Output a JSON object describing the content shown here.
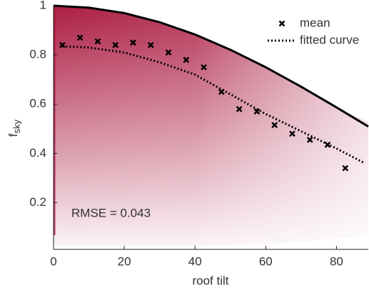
{
  "chart_data": {
    "type": "scatter",
    "xlabel": "roof tilt",
    "ylabel": "f",
    "ylabel_sub": "sky",
    "annotation": "RMSE = 0.043",
    "xlim": [
      0,
      89
    ],
    "ylim": [
      0.01,
      1
    ],
    "xticks": [
      0,
      20,
      40,
      60,
      80
    ],
    "yticks": [
      0.2,
      0.4,
      0.6,
      0.8,
      1
    ],
    "legend_position": "upper right",
    "series": [
      {
        "name": "mean",
        "kind": "marker",
        "color": "#000000",
        "x": [
          2.5,
          7.5,
          12.5,
          17.5,
          22.5,
          27.5,
          32.5,
          37.5,
          42.5,
          47.5,
          52.5,
          57.5,
          62.5,
          67.5,
          72.5,
          77.5,
          82.5
        ],
        "values": [
          0.84,
          0.87,
          0.855,
          0.84,
          0.85,
          0.84,
          0.81,
          0.78,
          0.75,
          0.65,
          0.58,
          0.57,
          0.515,
          0.48,
          0.455,
          0.435,
          0.34
        ]
      },
      {
        "name": "fitted curve",
        "kind": "dotted",
        "color": "#000000",
        "x": [
          2.5,
          10,
          20,
          30,
          40,
          50,
          60,
          70,
          80,
          88
        ],
        "values": [
          0.835,
          0.83,
          0.81,
          0.77,
          0.72,
          0.64,
          0.56,
          0.49,
          0.42,
          0.36
        ]
      },
      {
        "kind": "solid",
        "color": "#000000",
        "x": [
          0,
          10,
          20,
          30,
          40,
          50,
          60,
          70,
          80,
          89
        ],
        "values": [
          1,
          0.992,
          0.97,
          0.933,
          0.883,
          0.821,
          0.75,
          0.671,
          0.587,
          0.509
        ]
      }
    ]
  }
}
